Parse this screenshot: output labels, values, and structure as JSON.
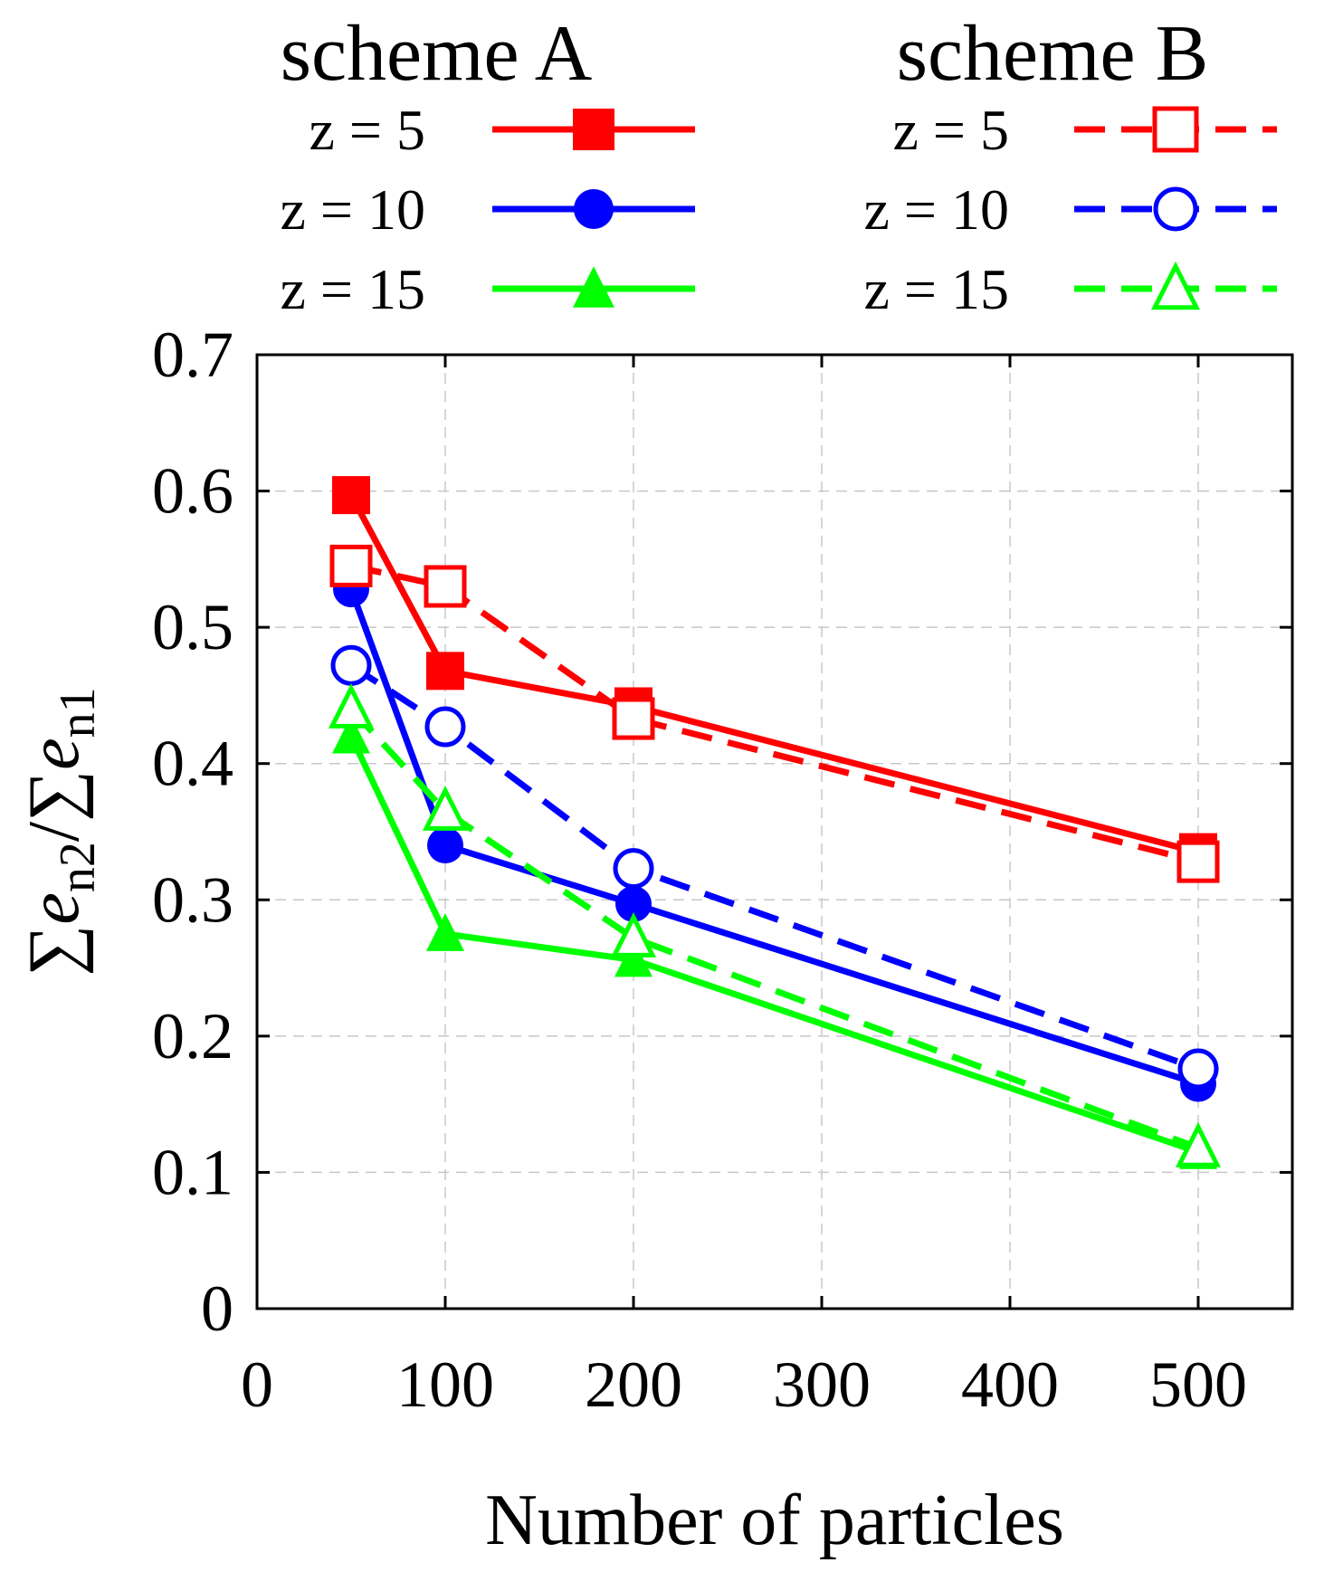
{
  "chart_data": {
    "type": "line",
    "title": "",
    "xlabel": "Number of particles",
    "ylabel_parts": {
      "sum1": "∑",
      "e1": "e",
      "sub1": "n2",
      "slash": "/",
      "sum2": "∑",
      "e2": "e",
      "sub2": "n1"
    },
    "xlim": [
      0,
      550
    ],
    "ylim": [
      0,
      0.7
    ],
    "x_ticks": [
      0,
      100,
      200,
      300,
      400,
      500
    ],
    "x_tick_labels": [
      "0",
      "100",
      "200",
      "300",
      "400",
      "500"
    ],
    "y_ticks": [
      0,
      0.1,
      0.2,
      0.3,
      0.4,
      0.5,
      0.6,
      0.7
    ],
    "y_tick_labels": [
      "0",
      "0.1",
      "0.2",
      "0.3",
      "0.4",
      "0.5",
      "0.6",
      "0.7"
    ],
    "grid": true,
    "legend_groups": [
      {
        "title": "scheme A",
        "placement": "top-left"
      },
      {
        "title": "scheme B",
        "placement": "top-right"
      }
    ],
    "x": [
      50,
      100,
      200,
      500
    ],
    "series": [
      {
        "name": "z = 5",
        "group": "scheme A",
        "color": "#ff0000",
        "dash": "solid",
        "marker": "square",
        "filled": true,
        "values": [
          0.597,
          0.468,
          0.442,
          0.335
        ]
      },
      {
        "name": "z = 10",
        "group": "scheme A",
        "color": "#0000ff",
        "dash": "solid",
        "marker": "circle",
        "filled": true,
        "values": [
          0.528,
          0.34,
          0.297,
          0.165
        ]
      },
      {
        "name": "z = 15",
        "group": "scheme A",
        "color": "#00ff00",
        "dash": "solid",
        "marker": "triangle",
        "filled": true,
        "values": [
          0.42,
          0.275,
          0.256,
          0.115
        ]
      },
      {
        "name": "z = 5",
        "group": "scheme B",
        "color": "#ff0000",
        "dash": "dashed",
        "marker": "square",
        "filled": false,
        "values": [
          0.545,
          0.53,
          0.433,
          0.328
        ]
      },
      {
        "name": "z = 10",
        "group": "scheme B",
        "color": "#0000ff",
        "dash": "dashed",
        "marker": "circle",
        "filled": false,
        "values": [
          0.472,
          0.427,
          0.323,
          0.176
        ]
      },
      {
        "name": "z = 15",
        "group": "scheme B",
        "color": "#00ff00",
        "dash": "dashed",
        "marker": "triangle",
        "filled": false,
        "values": [
          0.44,
          0.365,
          0.272,
          0.118
        ]
      }
    ]
  }
}
